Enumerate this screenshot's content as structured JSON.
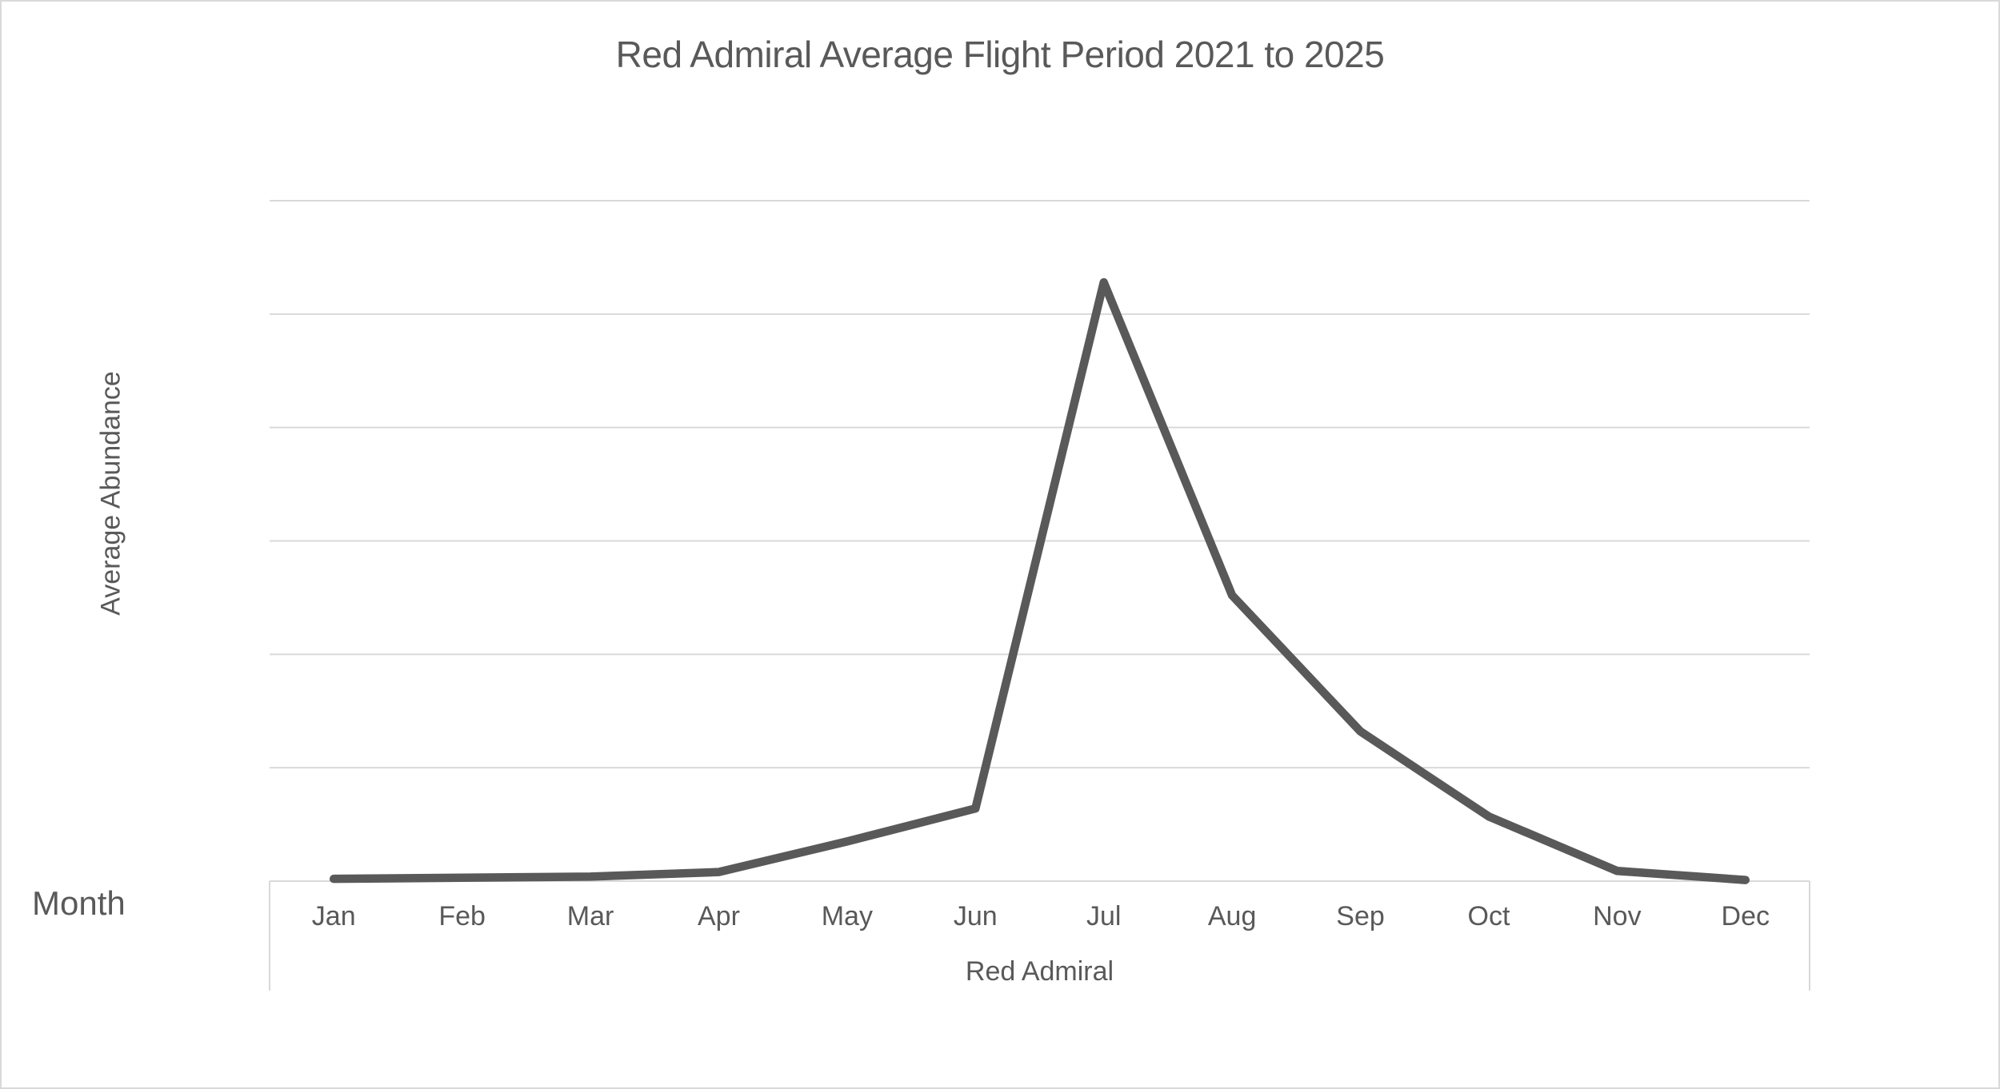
{
  "chart": {
    "title": "Red Admiral Average Flight Period 2021 to 2025",
    "y_axis_title": "Average Abundance",
    "x_axis_title": "Month",
    "series_group_label": "Red Admiral"
  },
  "chart_data": {
    "type": "line",
    "title": "Red Admiral Average Flight Period 2021 to 2025",
    "xlabel": "Month",
    "ylabel": "Average Abundance",
    "categories": [
      "Jan",
      "Feb",
      "Mar",
      "Apr",
      "May",
      "Jun",
      "Jul",
      "Aug",
      "Sep",
      "Oct",
      "Nov",
      "Dec"
    ],
    "series": [
      {
        "name": "Red Admiral",
        "values": [
          0.02,
          0.03,
          0.04,
          0.08,
          0.35,
          0.64,
          5.28,
          2.52,
          1.32,
          0.57,
          0.09,
          0.01
        ]
      }
    ],
    "ylim": [
      0,
      6
    ],
    "y_gridline_interval": 1,
    "y_tick_labels_visible": false,
    "note": "y-axis shows no numeric tick labels; values estimated in gridline units",
    "grid": "horizontal",
    "legend": "none"
  },
  "colors": {
    "line": "#595959",
    "text": "#595959",
    "grid": "#d9d9d9",
    "axis_band_border": "#d9d9d9",
    "canvas_border": "#d9d9d9",
    "background": "#ffffff"
  }
}
